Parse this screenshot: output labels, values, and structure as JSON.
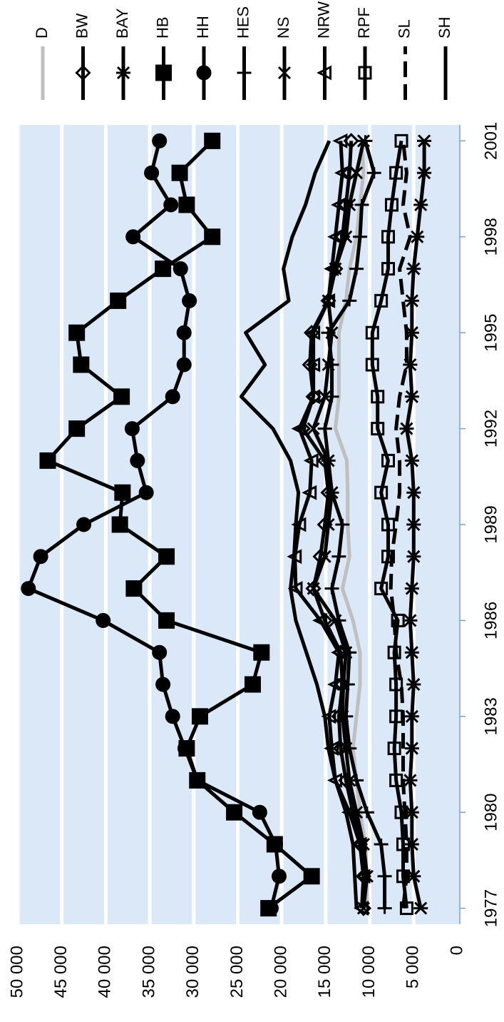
{
  "chart_data": {
    "type": "line",
    "x": [
      1977,
      1978,
      1979,
      1980,
      1981,
      1982,
      1983,
      1984,
      1985,
      1986,
      1987,
      1988,
      1989,
      1990,
      1991,
      1992,
      1993,
      1994,
      1995,
      1996,
      1997,
      1998,
      1999,
      2000,
      2001
    ],
    "xlim": [
      1976.5,
      2001.5
    ],
    "xticks": [
      1977,
      1980,
      1983,
      1986,
      1989,
      1992,
      1995,
      1998,
      2001
    ],
    "ylim": [
      0,
      50000
    ],
    "yticks": [
      0,
      {
        "value": 5000,
        "label": "5 000"
      },
      {
        "value": 10000,
        "label": "10 000"
      },
      {
        "value": 15000,
        "label": "15 000"
      },
      {
        "value": 20000,
        "label": "20 000"
      },
      {
        "value": 25000,
        "label": "25 000"
      },
      {
        "value": 30000,
        "label": "30 000"
      },
      {
        "value": 35000,
        "label": "35 000"
      },
      {
        "value": 40000,
        "label": "40 000"
      },
      {
        "value": 45000,
        "label": "45 000"
      },
      {
        "value": 50000,
        "label": "50 000"
      }
    ],
    "grid": true,
    "rotation": -90,
    "series": [
      {
        "name": "D",
        "color": "#bfbfbf",
        "marker": "none",
        "line_style": "solid",
        "values": [
          10300,
          10300,
          10500,
          11100,
          11500,
          11900,
          11500,
          11100,
          11100,
          11900,
          13100,
          12300,
          12500,
          12500,
          12600,
          13900,
          13500,
          13500,
          13500,
          12700,
          12300,
          11500,
          11100,
          10700,
          10900
        ]
      },
      {
        "name": "BW",
        "color": "#000000",
        "marker": "diamond",
        "line_style": "solid",
        "values": [
          10700,
          10700,
          11100,
          11900,
          12700,
          13300,
          13500,
          13100,
          13300,
          15100,
          16400,
          15600,
          15100,
          14700,
          15100,
          17600,
          16400,
          16800,
          16600,
          14700,
          13900,
          13100,
          12700,
          12300,
          12100
        ]
      },
      {
        "name": "BAY",
        "color": "#000000",
        "marker": "asterisk",
        "line_style": "solid",
        "values": [
          4200,
          5000,
          5200,
          5200,
          5400,
          5200,
          5200,
          5000,
          5200,
          5400,
          5200,
          5000,
          5000,
          5000,
          5200,
          5800,
          5200,
          5400,
          5200,
          5200,
          5000,
          4600,
          4200,
          3800,
          3800
        ]
      },
      {
        "name": "HB",
        "color": "#000000",
        "marker": "square",
        "line_style": "solid",
        "values": [
          21500,
          16600,
          20800,
          25400,
          29600,
          30800,
          29300,
          23300,
          22300,
          33100,
          36800,
          33100,
          38400,
          38100,
          46600,
          43300,
          38200,
          42800,
          43300,
          38600,
          33500,
          27900,
          30800,
          31600,
          27900
        ]
      },
      {
        "name": "HH",
        "color": "#000000",
        "marker": "circle",
        "line_style": "solid",
        "values": [
          21200,
          20300,
          20700,
          22500,
          29600,
          31000,
          32400,
          33500,
          33900,
          40300,
          48800,
          47400,
          42500,
          35400,
          36400,
          37000,
          32400,
          31100,
          31100,
          30500,
          31500,
          36900,
          32600,
          34800,
          33900
        ]
      },
      {
        "name": "HES",
        "color": "#000000",
        "marker": "plus",
        "line_style": "solid",
        "values": [
          8300,
          8300,
          8700,
          10300,
          11500,
          12300,
          12700,
          12500,
          12300,
          13500,
          14300,
          13500,
          13100,
          14300,
          14700,
          15100,
          14300,
          14300,
          14700,
          12300,
          11500,
          11100,
          10900,
          9500,
          10500
        ]
      },
      {
        "name": "NS",
        "color": "#000000",
        "marker": "x",
        "line_style": "solid",
        "values": [
          10700,
          10300,
          10700,
          11500,
          12300,
          12700,
          13100,
          13000,
          12700,
          13900,
          16400,
          15100,
          14700,
          14300,
          14700,
          16400,
          15100,
          14700,
          14300,
          14700,
          13900,
          12700,
          12300,
          11500,
          10700
        ]
      },
      {
        "name": "NRW",
        "color": "#000000",
        "marker": "triangle",
        "line_style": "solid",
        "values": [
          10900,
          10700,
          11100,
          12300,
          13900,
          14300,
          14600,
          13900,
          13500,
          15600,
          18400,
          18500,
          18000,
          16800,
          16600,
          18000,
          16400,
          16400,
          16400,
          14700,
          14300,
          13900,
          13500,
          13100,
          13300
        ]
      },
      {
        "name": "RPF",
        "color": "#000000",
        "marker": "open-square",
        "line_style": "solid",
        "values": [
          5800,
          6200,
          6200,
          6400,
          7000,
          7200,
          7000,
          7000,
          7200,
          6800,
          8700,
          7900,
          7900,
          8700,
          7900,
          9100,
          9100,
          9700,
          9700,
          8700,
          7900,
          7900,
          7500,
          7000,
          6400
        ]
      },
      {
        "name": "SL",
        "color": "#000000",
        "marker": "none",
        "line_style": "dashed",
        "values": [
          6200,
          5800,
          5800,
          6000,
          6200,
          6200,
          6200,
          6400,
          7000,
          7200,
          7600,
          7500,
          7000,
          6600,
          6600,
          7000,
          6600,
          5800,
          5800,
          6200,
          6600,
          5400,
          6200,
          5800,
          6200
        ]
      },
      {
        "name": "SH",
        "color": "#000000",
        "marker": "none",
        "line_style": "solid",
        "values": [
          11500,
          11700,
          11900,
          12700,
          13900,
          14700,
          15100,
          16000,
          17200,
          18400,
          19000,
          18600,
          18400,
          18100,
          19000,
          21000,
          24600,
          21900,
          24100,
          19200,
          19800,
          18800,
          17300,
          16200,
          14600
        ]
      }
    ]
  }
}
